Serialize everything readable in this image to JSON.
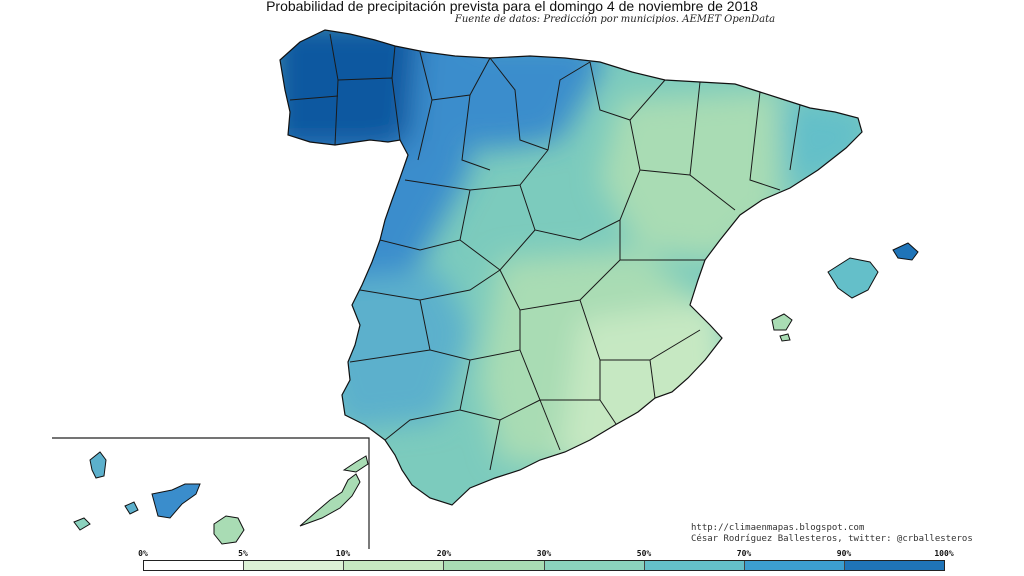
{
  "title": "Probabilidad de precipitación prevista para el domingo 4 de noviembre de 2018",
  "subtitle": "Fuente de datos: Predicción por municipios. AEMET OpenData",
  "credits": {
    "blog": "http://climaenmapas.blogspot.com",
    "author": "César Rodríguez Ballesteros, twitter: @crballesteros"
  },
  "legend": {
    "ticks": [
      "0%",
      "5%",
      "10%",
      "20%",
      "30%",
      "50%",
      "70%",
      "90%",
      "100%"
    ],
    "colors": [
      "#ffffff",
      "#dcf1d6",
      "#c6e8c2",
      "#a9dcb4",
      "#8bd2be",
      "#64bfc9",
      "#3c9ed0",
      "#1f74b8",
      "#0b58a0"
    ]
  },
  "regions": {
    "galicia_color": "#0b58a0",
    "north_color": "#3a8dcc",
    "west_color": "#5cb0cc",
    "center_color": "#7ccbbd",
    "southeast_color": "#c6e8c2",
    "east_color": "#a9dcb4"
  }
}
